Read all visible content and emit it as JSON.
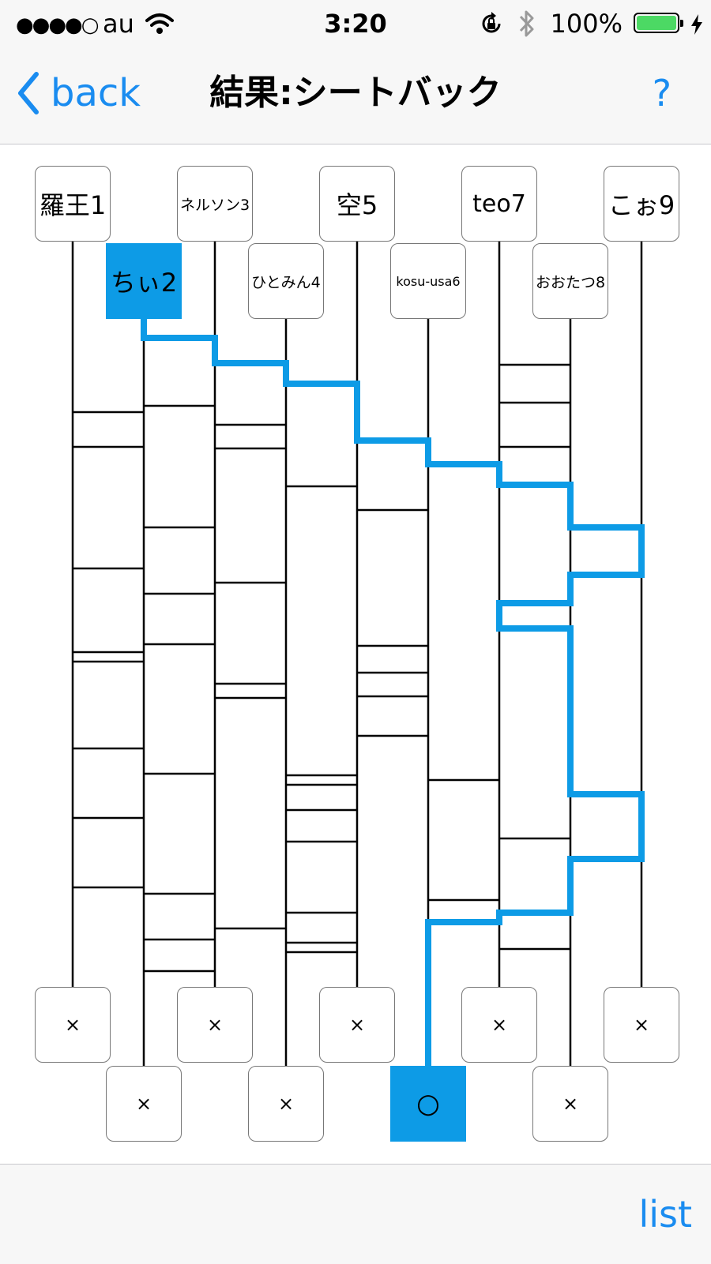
{
  "status_bar": {
    "signal": "●●●●○",
    "carrier": "au",
    "time": "3:20",
    "battery_percent": "100%",
    "battery_level": 1.0,
    "icons": [
      "wifi-icon",
      "rotation-lock-icon",
      "bluetooth-icon",
      "battery-icon",
      "charging-bolt-icon"
    ]
  },
  "nav": {
    "back_label": "back",
    "title": "結果:シートバック",
    "help_label": "?"
  },
  "toolbar": {
    "list_label": "list"
  },
  "colors": {
    "accent": "#1a8cf0",
    "highlight": "#0d9be6",
    "line": "#000000"
  },
  "ladder": {
    "players": [
      {
        "name": "羅王1",
        "selected": false
      },
      {
        "name": "ちぃ2",
        "selected": true
      },
      {
        "name": "ネルソン3",
        "selected": false
      },
      {
        "name": "ひとみん4",
        "selected": false
      },
      {
        "name": "空5",
        "selected": false
      },
      {
        "name": "kosu-usa6",
        "selected": false
      },
      {
        "name": "teo7",
        "selected": false
      },
      {
        "name": "おおたつ8",
        "selected": false
      },
      {
        "name": "こぉ9",
        "selected": false
      }
    ],
    "results": [
      {
        "mark": "×",
        "selected": false
      },
      {
        "mark": "×",
        "selected": false
      },
      {
        "mark": "×",
        "selected": false
      },
      {
        "mark": "×",
        "selected": false
      },
      {
        "mark": "×",
        "selected": false
      },
      {
        "mark": "○",
        "selected": true
      },
      {
        "mark": "×",
        "selected": false
      },
      {
        "mark": "×",
        "selected": false
      },
      {
        "mark": "×",
        "selected": false
      }
    ]
  }
}
